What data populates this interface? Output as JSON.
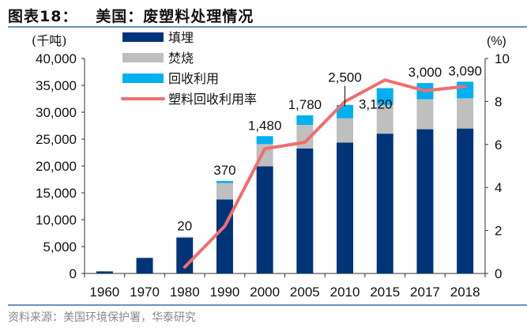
{
  "title": "图表18：   美国：废塑料处理情况",
  "source": "资料来源：美国环境保护署，华泰研究",
  "colors": {
    "landfill": "#003478",
    "incineration": "#bfbfbf",
    "recycling": "#00b0f0",
    "rate": "#f26d6d",
    "rule": "#6f8fbf"
  },
  "chart_data": {
    "type": "bar",
    "stacked": true,
    "title": "美国：废塑料处理情况",
    "ylabel": "(千吨)",
    "y2label": "(%)",
    "ylim": [
      0,
      40000
    ],
    "y2lim": [
      0,
      10
    ],
    "yticks": [
      "0",
      "5,000",
      "10,000",
      "15,000",
      "20,000",
      "25,000",
      "30,000",
      "35,000",
      "40,000"
    ],
    "y2ticks": [
      "0",
      "2",
      "4",
      "6",
      "8",
      "10"
    ],
    "grid": false,
    "legend_position": "top-left",
    "categories": [
      "1960",
      "1970",
      "1980",
      "1990",
      "2000",
      "2005",
      "2010",
      "2015",
      "2017",
      "2018"
    ],
    "series": [
      {
        "name": "填埋",
        "type": "bar",
        "values": [
          390,
          2900,
          6670,
          13780,
          19950,
          23270,
          24370,
          26010,
          26830,
          26970
        ]
      },
      {
        "name": "焚烧",
        "type": "bar",
        "values": [
          0,
          0,
          140,
          3050,
          4120,
          4370,
          4500,
          5350,
          5590,
          5620
        ]
      },
      {
        "name": "回收利用",
        "type": "bar",
        "values": [
          0,
          0,
          20,
          370,
          1480,
          1780,
          2500,
          3120,
          3000,
          3090
        ]
      },
      {
        "name": "塑料回收利用率",
        "type": "line",
        "axis": "right",
        "values": [
          null,
          null,
          0.3,
          2.2,
          5.8,
          6.1,
          8.0,
          9.0,
          8.5,
          8.7
        ]
      }
    ],
    "data_labels": [
      "",
      "",
      "20",
      "370",
      "1,480",
      "1,780",
      "2,500",
      "3,120",
      "3,000",
      "3,090"
    ]
  }
}
